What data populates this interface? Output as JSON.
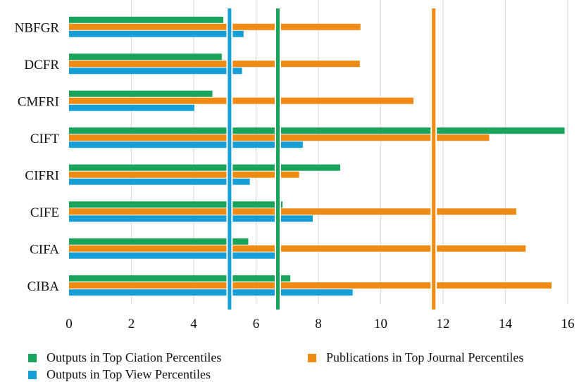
{
  "colors": {
    "citation": "#1aa35a",
    "journal": "#ef8a12",
    "view": "#169fd6",
    "grid": "#dcdcdc"
  },
  "chart_data": {
    "type": "bar",
    "orientation": "horizontal",
    "categories": [
      "NBFGR",
      "DCFR",
      "CMFRI",
      "CIFT",
      "CIFRI",
      "CIFE",
      "CIFA",
      "CIBA"
    ],
    "series": [
      {
        "name": "Outputs in Top Ciation Percentiles",
        "color": "#1aa35a",
        "values": [
          4.95,
          4.9,
          4.6,
          15.9,
          8.7,
          6.85,
          5.75,
          7.1
        ]
      },
      {
        "name": "Publications in Top Journal Percentiles",
        "color": "#ef8a12",
        "values": [
          9.35,
          9.33,
          11.05,
          13.48,
          7.38,
          14.35,
          14.65,
          15.48
        ]
      },
      {
        "name": "Outputs in Top View Percentiles",
        "color": "#169fd6",
        "values": [
          5.6,
          5.55,
          4.02,
          7.5,
          5.8,
          7.82,
          6.6,
          9.1
        ]
      }
    ],
    "reference_lines": [
      {
        "series": "Outputs in Top View Percentiles",
        "value": 5.15,
        "color": "#169fd6"
      },
      {
        "series": "Outputs in Top Ciation Percentiles",
        "value": 6.7,
        "color": "#1aa35a"
      },
      {
        "series": "Publications in Top Journal Percentiles",
        "value": 11.7,
        "color": "#ef8a12"
      }
    ],
    "xlim": [
      0,
      16
    ],
    "xticks": [
      "0",
      "2",
      "4",
      "6",
      "8",
      "10",
      "12",
      "14",
      "16"
    ],
    "grid": "vertical",
    "legend_position": "bottom",
    "title": "",
    "xlabel": "",
    "ylabel": ""
  },
  "legend": [
    {
      "label": "Outputs in Top Ciation Percentiles",
      "color": "#1aa35a"
    },
    {
      "label": "Publications in Top Journal Percentiles",
      "color": "#ef8a12"
    },
    {
      "label": "Outputs in Top View Percentiles",
      "color": "#169fd6"
    }
  ]
}
